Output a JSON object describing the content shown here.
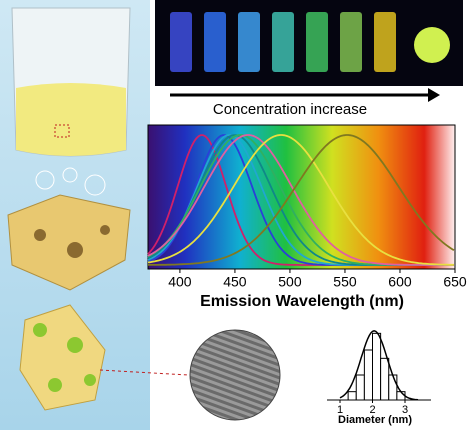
{
  "arrow_label": "Concentration increase",
  "spectrum": {
    "type": "line",
    "x_label": "Emission Wavelength (nm)",
    "xlim": [
      371,
      650
    ],
    "xticks": [
      400,
      450,
      500,
      550,
      600,
      650
    ],
    "peaks": [
      420,
      440,
      445,
      450,
      455,
      462,
      492,
      552
    ],
    "colors": [
      "#d0206a",
      "#2a40d8",
      "#20a8d0",
      "#108888",
      "#30b060",
      "#e060a0",
      "#e8e040",
      "#807820"
    ]
  },
  "histogram": {
    "type": "histogram",
    "x_label": "Diameter (nm)",
    "xlim": [
      0.6,
      3.8
    ],
    "ylim": [
      0,
      9
    ],
    "xticks": [
      1,
      2,
      3
    ],
    "bins": [
      1.25,
      1.5,
      1.75,
      2.0,
      2.25,
      2.5,
      2.75,
      3.0
    ],
    "counts": [
      1,
      3,
      6,
      8,
      5,
      3,
      1
    ]
  }
}
